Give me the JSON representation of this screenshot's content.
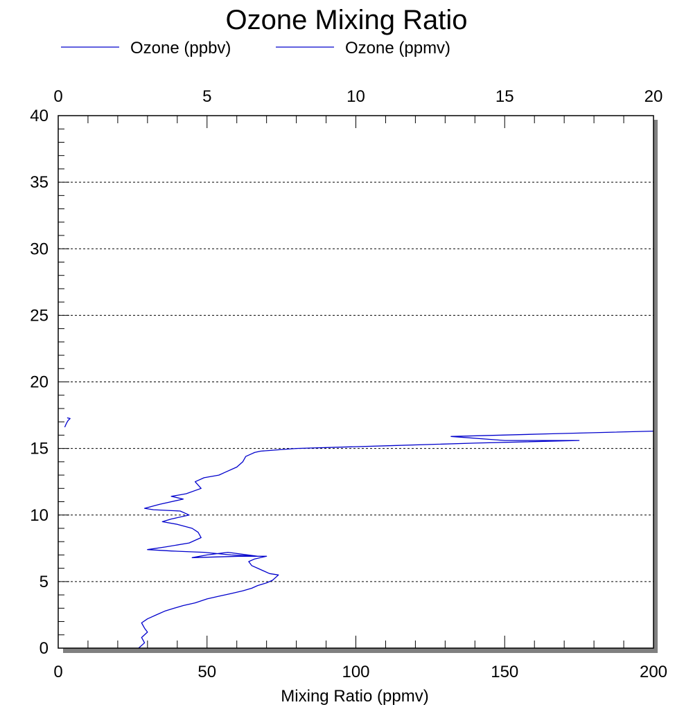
{
  "chart_data": {
    "type": "line",
    "title": "Ozone Mixing Ratio",
    "xlabel": "Mixing Ratio (ppmv)",
    "ylabel": "",
    "xlim_bottom": [
      0,
      200
    ],
    "xlim_top": [
      0,
      20
    ],
    "ylim": [
      0,
      40
    ],
    "x_ticks_bottom": [
      0,
      50,
      100,
      150,
      200
    ],
    "x_ticks_top": [
      0,
      5,
      10,
      15,
      20
    ],
    "y_ticks": [
      0,
      5,
      10,
      15,
      20,
      25,
      30,
      35,
      40
    ],
    "grid": "horizontal-dotted",
    "legend": {
      "placement": "top",
      "entries": [
        {
          "label": "Ozone (ppbv)",
          "color": "#0000cc"
        },
        {
          "label": "Ozone (ppmv)",
          "color": "#0000cc"
        }
      ]
    },
    "series": [
      {
        "name": "Ozone (ppbv)",
        "axis": "top",
        "color": "#0000cc",
        "x": [
          0.22,
          0.28,
          0.33,
          0.4,
          0.3
        ],
        "y": [
          16.6,
          16.9,
          17.1,
          17.25,
          17.3
        ]
      },
      {
        "name": "Ozone (ppmv)",
        "axis": "bottom",
        "color": "#0000cc",
        "x": [
          27,
          29,
          28,
          30,
          29,
          28,
          30,
          33,
          36,
          39,
          42,
          46,
          50,
          54,
          58,
          62,
          65,
          67,
          70,
          72,
          74,
          71,
          69,
          67,
          65,
          64,
          66,
          70,
          61,
          45,
          50,
          57,
          67,
          58,
          49,
          38,
          30,
          36,
          44,
          48,
          47,
          45,
          40,
          35,
          38,
          44,
          41,
          32,
          29,
          34,
          42,
          38,
          43,
          48,
          46,
          49,
          54,
          56,
          60,
          62,
          63,
          65,
          66,
          68,
          80,
          110,
          140,
          175,
          150,
          132,
          165,
          200
        ],
        "y": [
          0.0,
          0.4,
          0.8,
          1.2,
          1.5,
          1.9,
          2.2,
          2.5,
          2.8,
          3.0,
          3.2,
          3.4,
          3.7,
          3.9,
          4.1,
          4.3,
          4.5,
          4.7,
          4.9,
          5.1,
          5.5,
          5.6,
          5.8,
          6.0,
          6.2,
          6.5,
          6.7,
          6.9,
          6.9,
          6.8,
          7.0,
          7.2,
          6.9,
          7.0,
          7.2,
          7.3,
          7.4,
          7.6,
          7.9,
          8.3,
          8.7,
          9.0,
          9.3,
          9.5,
          9.7,
          10.0,
          10.3,
          10.4,
          10.5,
          10.8,
          11.2,
          11.4,
          11.6,
          12.0,
          12.5,
          12.8,
          13.0,
          13.2,
          13.6,
          14.0,
          14.4,
          14.6,
          14.7,
          14.8,
          15.0,
          15.2,
          15.4,
          15.6,
          15.6,
          15.9,
          16.1,
          16.3
        ]
      }
    ]
  }
}
